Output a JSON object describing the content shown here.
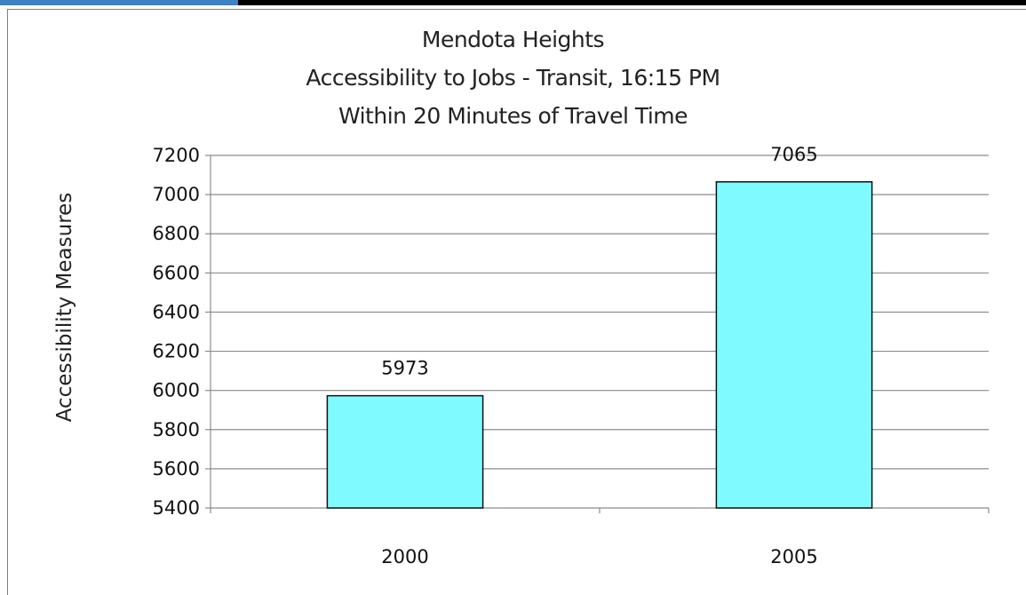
{
  "chart_data": {
    "type": "bar",
    "title_lines": [
      "Mendota Heights",
      "Accessibility to Jobs - Transit, 16:15 PM",
      "Within 20 Minutes of Travel Time"
    ],
    "xlabel": "",
    "ylabel": "Accessibility Measures",
    "categories": [
      "2000",
      "2005"
    ],
    "values": [
      5973,
      7065
    ],
    "data_labels": [
      "5973",
      "7065"
    ],
    "ylim": [
      5400,
      7200
    ],
    "yticks": [
      "5400",
      "5600",
      "5800",
      "6000",
      "6200",
      "6400",
      "6600",
      "6800",
      "7000",
      "7200"
    ],
    "grid": true,
    "bar_color": "#7ffbff",
    "legend": "none"
  }
}
